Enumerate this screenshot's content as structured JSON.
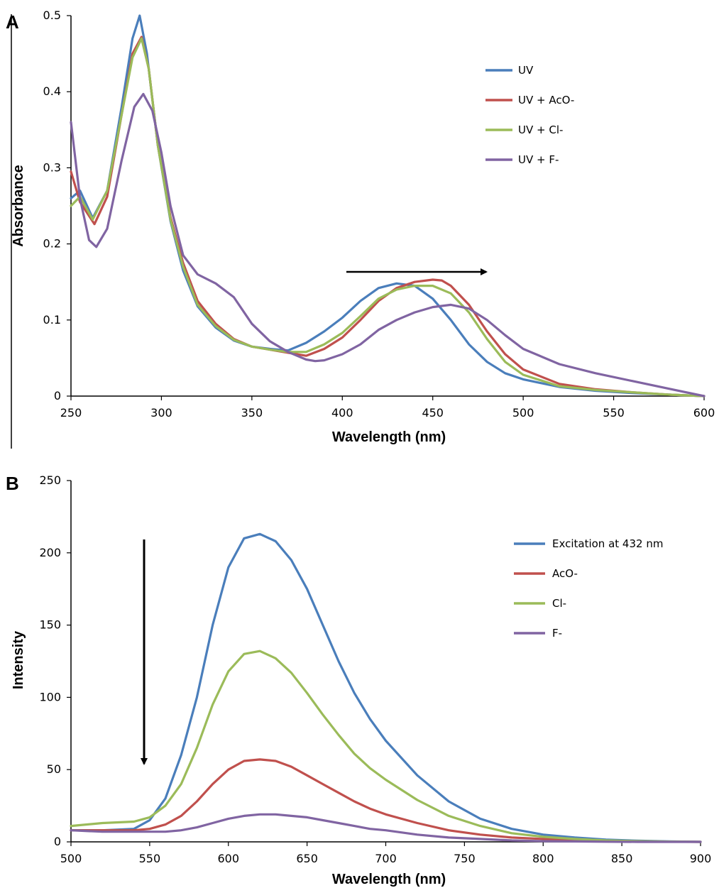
{
  "chart_data": [
    {
      "panel": "A",
      "type": "line",
      "xlabel": "Wavelength (nm)",
      "ylabel": "Absorbance",
      "xlim": [
        250,
        600
      ],
      "ylim": [
        0,
        0.5
      ],
      "xticks": [
        250,
        300,
        350,
        400,
        450,
        500,
        550,
        600
      ],
      "yticks": [
        0,
        0.1,
        0.2,
        0.3,
        0.4,
        0.5
      ],
      "ytick_labels": [
        "0",
        "0.1",
        "0.2",
        "0.3",
        "0.4",
        "0.5"
      ],
      "legend_position": "top-right",
      "grid": false,
      "annotation": "arrow pointing right (red shift)",
      "series": [
        {
          "name": "UV",
          "color": "#4a7ebb",
          "x": [
            250,
            255,
            262,
            270,
            278,
            284,
            288,
            292,
            298,
            305,
            312,
            320,
            330,
            340,
            350,
            360,
            370,
            380,
            390,
            400,
            410,
            420,
            430,
            440,
            450,
            460,
            470,
            480,
            490,
            500,
            520,
            540,
            560,
            580,
            600
          ],
          "y": [
            0.26,
            0.27,
            0.234,
            0.27,
            0.38,
            0.47,
            0.5,
            0.45,
            0.33,
            0.23,
            0.165,
            0.118,
            0.09,
            0.073,
            0.065,
            0.062,
            0.06,
            0.07,
            0.085,
            0.103,
            0.125,
            0.142,
            0.148,
            0.145,
            0.128,
            0.1,
            0.068,
            0.045,
            0.03,
            0.022,
            0.012,
            0.007,
            0.004,
            0.002,
            0.0
          ]
        },
        {
          "name": "UV + AcO-",
          "color": "#c0504d",
          "x": [
            250,
            255,
            263,
            270,
            278,
            284,
            289,
            293,
            298,
            305,
            312,
            320,
            330,
            340,
            350,
            360,
            370,
            380,
            390,
            400,
            410,
            420,
            430,
            440,
            450,
            455,
            460,
            470,
            480,
            490,
            500,
            520,
            540,
            560,
            580,
            600
          ],
          "y": [
            0.295,
            0.255,
            0.226,
            0.262,
            0.37,
            0.45,
            0.472,
            0.43,
            0.33,
            0.235,
            0.175,
            0.125,
            0.095,
            0.075,
            0.065,
            0.061,
            0.057,
            0.053,
            0.062,
            0.077,
            0.1,
            0.125,
            0.142,
            0.15,
            0.153,
            0.152,
            0.145,
            0.12,
            0.085,
            0.055,
            0.035,
            0.016,
            0.009,
            0.005,
            0.002,
            0.0
          ]
        },
        {
          "name": "UV + Cl-",
          "color": "#9bbb59",
          "x": [
            250,
            255,
            262,
            270,
            278,
            284,
            289,
            293,
            298,
            305,
            312,
            320,
            330,
            340,
            350,
            360,
            370,
            380,
            390,
            400,
            410,
            420,
            430,
            440,
            450,
            460,
            470,
            480,
            490,
            500,
            520,
            540,
            560,
            580,
            600
          ],
          "y": [
            0.25,
            0.262,
            0.232,
            0.27,
            0.37,
            0.445,
            0.47,
            0.43,
            0.33,
            0.232,
            0.17,
            0.12,
            0.092,
            0.074,
            0.065,
            0.061,
            0.058,
            0.058,
            0.068,
            0.083,
            0.105,
            0.128,
            0.14,
            0.145,
            0.145,
            0.135,
            0.11,
            0.075,
            0.045,
            0.028,
            0.013,
            0.008,
            0.005,
            0.002,
            0.0
          ]
        },
        {
          "name": "UV + F-",
          "color": "#8064a2",
          "x": [
            250,
            255,
            260,
            264,
            270,
            278,
            285,
            290,
            295,
            300,
            305,
            312,
            320,
            330,
            340,
            350,
            360,
            370,
            380,
            385,
            390,
            400,
            410,
            420,
            430,
            440,
            450,
            460,
            470,
            480,
            490,
            500,
            520,
            540,
            560,
            580,
            600
          ],
          "y": [
            0.36,
            0.26,
            0.205,
            0.196,
            0.22,
            0.31,
            0.38,
            0.397,
            0.375,
            0.32,
            0.25,
            0.185,
            0.16,
            0.148,
            0.13,
            0.095,
            0.072,
            0.058,
            0.048,
            0.046,
            0.047,
            0.055,
            0.068,
            0.087,
            0.1,
            0.11,
            0.117,
            0.12,
            0.115,
            0.1,
            0.08,
            0.062,
            0.042,
            0.03,
            0.02,
            0.01,
            0.0
          ]
        }
      ]
    },
    {
      "panel": "B",
      "type": "line",
      "xlabel": "Wavelength (nm)",
      "ylabel": "Intensity",
      "xlim": [
        500,
        900
      ],
      "ylim": [
        0,
        250
      ],
      "xticks": [
        500,
        550,
        600,
        650,
        700,
        750,
        800,
        850,
        900
      ],
      "yticks": [
        0,
        50,
        100,
        150,
        200,
        250
      ],
      "ytick_labels": [
        "0",
        "50",
        "100",
        "150",
        "200",
        "250"
      ],
      "legend_position": "top-right",
      "grid": false,
      "annotation": "arrow pointing down (quenching)",
      "series": [
        {
          "name": "Excitation at 432 nm",
          "color": "#4a7ebb",
          "x": [
            500,
            520,
            540,
            550,
            560,
            570,
            580,
            590,
            600,
            610,
            620,
            630,
            640,
            650,
            660,
            670,
            680,
            690,
            700,
            720,
            740,
            760,
            780,
            800,
            820,
            840,
            860,
            880,
            900
          ],
          "y": [
            8,
            8,
            9,
            15,
            30,
            60,
            100,
            150,
            190,
            210,
            213,
            208,
            195,
            175,
            150,
            125,
            103,
            85,
            70,
            46,
            28,
            16,
            9,
            5,
            3,
            1.5,
            0.8,
            0.3,
            0
          ]
        },
        {
          "name": "AcO-",
          "color": "#c0504d",
          "x": [
            500,
            520,
            540,
            550,
            560,
            570,
            580,
            590,
            600,
            610,
            620,
            630,
            640,
            650,
            660,
            670,
            680,
            690,
            700,
            720,
            740,
            760,
            780,
            800,
            820,
            840,
            860,
            880,
            900
          ],
          "y": [
            8,
            8,
            8,
            9,
            12,
            18,
            28,
            40,
            50,
            56,
            57,
            56,
            52,
            46,
            40,
            34,
            28,
            23,
            19,
            13,
            8,
            5,
            3,
            2,
            1,
            0.5,
            0.2,
            0.1,
            0
          ]
        },
        {
          "name": "Cl-",
          "color": "#9bbb59",
          "x": [
            500,
            520,
            540,
            550,
            560,
            570,
            580,
            590,
            600,
            610,
            620,
            630,
            640,
            650,
            660,
            670,
            680,
            690,
            700,
            720,
            740,
            760,
            780,
            800,
            820,
            840,
            860,
            880,
            900
          ],
          "y": [
            11,
            13,
            14,
            17,
            25,
            40,
            65,
            95,
            118,
            130,
            132,
            127,
            117,
            103,
            88,
            74,
            61,
            51,
            43,
            29,
            18,
            11,
            6,
            3.5,
            2,
            1,
            0.5,
            0.2,
            0
          ]
        },
        {
          "name": "F-",
          "color": "#8064a2",
          "x": [
            500,
            520,
            540,
            560,
            570,
            580,
            590,
            600,
            610,
            620,
            630,
            640,
            650,
            660,
            670,
            680,
            690,
            700,
            720,
            740,
            760,
            780,
            800,
            820,
            840,
            860,
            880,
            900
          ],
          "y": [
            8,
            7,
            7,
            7,
            8,
            10,
            13,
            16,
            18,
            19,
            19,
            18,
            17,
            15,
            13,
            11,
            9,
            8,
            5,
            3,
            2,
            1,
            0.5,
            0.3,
            0.1,
            0,
            0,
            0
          ]
        }
      ]
    }
  ]
}
